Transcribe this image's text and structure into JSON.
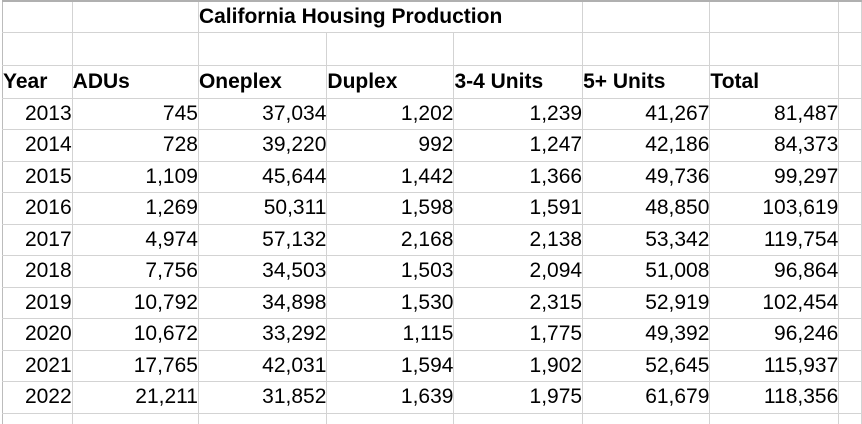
{
  "title": "California Housing Production",
  "table": {
    "columns": [
      "Year",
      "ADUs",
      "Oneplex",
      "Duplex",
      "3-4 Units",
      "5+ Units",
      "Total"
    ],
    "column_keys": [
      "year",
      "adus",
      "oneplex",
      "duplex",
      "3-4-units",
      "5plus-units",
      "total"
    ],
    "rows": [
      [
        "2013",
        "745",
        "37,034",
        "1,202",
        "1,239",
        "41,267",
        "81,487"
      ],
      [
        "2014",
        "728",
        "39,220",
        "992",
        "1,247",
        "42,186",
        "84,373"
      ],
      [
        "2015",
        "1,109",
        "45,644",
        "1,442",
        "1,366",
        "49,736",
        "99,297"
      ],
      [
        "2016",
        "1,269",
        "50,311",
        "1,598",
        "1,591",
        "48,850",
        "103,619"
      ],
      [
        "2017",
        "4,974",
        "57,132",
        "2,168",
        "2,138",
        "53,342",
        "119,754"
      ],
      [
        "2018",
        "7,756",
        "34,503",
        "1,503",
        "2,094",
        "51,008",
        "96,864"
      ],
      [
        "2019",
        "10,792",
        "34,898",
        "1,530",
        "2,315",
        "52,919",
        "102,454"
      ],
      [
        "2020",
        "10,672",
        "33,292",
        "1,115",
        "1,775",
        "49,392",
        "96,246"
      ],
      [
        "2021",
        "17,765",
        "42,031",
        "1,594",
        "1,902",
        "52,645",
        "115,937"
      ],
      [
        "2022",
        "21,211",
        "31,852",
        "1,639",
        "1,975",
        "61,679",
        "118,356"
      ]
    ]
  },
  "colors": {
    "background": "#ffffff",
    "gridline": "#d3d3d3",
    "outer_border": "#b0b0b0",
    "text": "#000000"
  }
}
